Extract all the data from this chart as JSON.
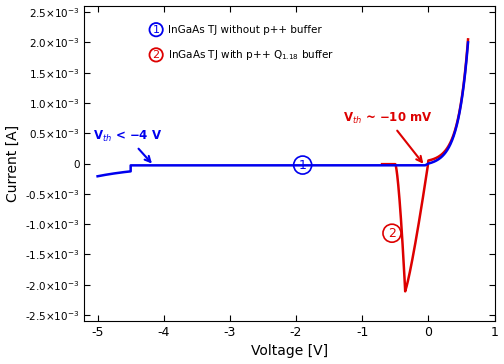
{
  "xlabel": "Voltage [V]",
  "ylabel": "Current [A]",
  "xlim": [
    -5.2,
    0.75
  ],
  "ylim": [
    -0.0026,
    0.0026
  ],
  "yticks": [
    -0.0025,
    -0.002,
    -0.0015,
    -0.001,
    -0.0005,
    0.0,
    0.0005,
    0.001,
    0.0015,
    0.002,
    0.0025
  ],
  "xticks": [
    -5,
    -4,
    -3,
    -2,
    -1,
    0,
    1
  ],
  "color_blue": "#0000EE",
  "color_red": "#DD0000",
  "legend_label1": "InGaAs TJ without p++ buffer",
  "legend_label2": "InGaAs TJ with p++ Q$_{1.18}$ buffer",
  "ann1_text": "V$_{th}$ < −4 V",
  "ann2_text": "V$_{th}$ ~ −10 mV"
}
